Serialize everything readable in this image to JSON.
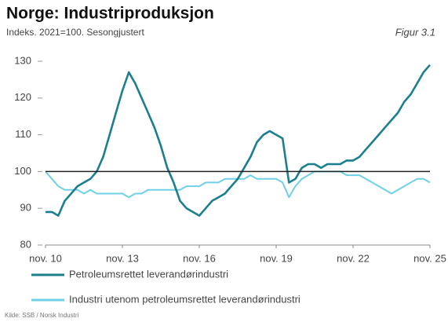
{
  "chart_data": {
    "type": "line",
    "title": "Norge: Industriproduksjon",
    "subtitle": "Indeks. 2021=100. Sesongjustert",
    "figure_label": "Figur 3.1",
    "source": "Kilde: SSB / Norsk Industri",
    "categories": [
      "nov. 10",
      null,
      null,
      null,
      null,
      null,
      null,
      null,
      null,
      null,
      null,
      null,
      "nov. 13",
      null,
      null,
      null,
      null,
      null,
      null,
      null,
      null,
      null,
      null,
      null,
      "nov. 16",
      null,
      null,
      null,
      null,
      null,
      null,
      null,
      null,
      null,
      null,
      null,
      "nov. 19",
      null,
      null,
      null,
      null,
      null,
      null,
      null,
      null,
      null,
      null,
      null,
      "nov. 22",
      null,
      null,
      null,
      null,
      null,
      null,
      null,
      null,
      null,
      null,
      null,
      "nov. 25"
    ],
    "series": [
      {
        "name": "Petroleumsrettet leverandørindustri",
        "color": "#1b7f8e",
        "values": [
          89,
          89,
          88,
          92,
          94,
          96,
          97,
          98,
          100,
          104,
          110,
          116,
          122,
          127,
          124,
          120,
          116,
          112,
          107,
          101,
          97,
          92,
          90,
          89,
          88,
          90,
          92,
          93,
          94,
          96,
          98,
          101,
          104,
          108,
          110,
          111,
          110,
          109,
          97,
          98,
          101,
          102,
          102,
          101,
          102,
          102,
          102,
          103,
          103,
          104,
          106,
          108,
          110,
          112,
          114,
          116,
          119,
          121,
          124,
          127,
          129
        ]
      },
      {
        "name": "Industri utenom petroleumsrettet leverandørindustri",
        "color": "#6fd0e6",
        "values": [
          100,
          98,
          96,
          95,
          95,
          95,
          94,
          95,
          94,
          94,
          94,
          94,
          94,
          93,
          94,
          94,
          95,
          95,
          95,
          95,
          95,
          95,
          96,
          96,
          96,
          97,
          97,
          97,
          98,
          98,
          98,
          98,
          99,
          98,
          98,
          98,
          98,
          97,
          93,
          96,
          98,
          99,
          100,
          100,
          100,
          100,
          100,
          99,
          99,
          99,
          98,
          97,
          96,
          95,
          94,
          95,
          96,
          97,
          98,
          98,
          97
        ]
      }
    ],
    "reference_line": 100,
    "ylim": [
      80,
      130
    ],
    "yticks": [
      80,
      90,
      100,
      110,
      120,
      130
    ]
  }
}
